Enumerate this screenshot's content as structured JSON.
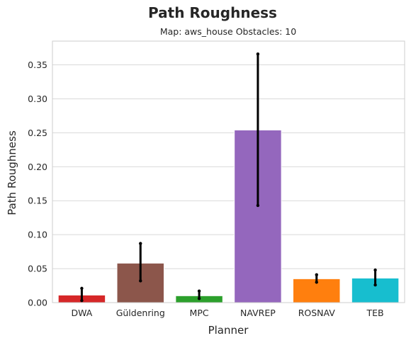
{
  "chart_data": {
    "type": "bar",
    "title": "Path Roughness",
    "subtitle": "Map: aws_house Obstacles: 10",
    "xlabel": "Planner",
    "ylabel": "Path Roughness",
    "categories": [
      "DWA",
      "Güldenring",
      "MPC",
      "NAVREP",
      "ROSNAV",
      "TEB"
    ],
    "values": [
      0.011,
      0.058,
      0.01,
      0.254,
      0.035,
      0.036
    ],
    "error_low": [
      0.003,
      0.032,
      0.006,
      0.143,
      0.03,
      0.026
    ],
    "error_high": [
      0.021,
      0.087,
      0.017,
      0.366,
      0.041,
      0.048
    ],
    "colors": [
      "#d62728",
      "#8c564b",
      "#2ca02c",
      "#9467bd",
      "#ff7f0e",
      "#17becf"
    ],
    "ylim": [
      0,
      0.385
    ],
    "yticks": [
      "0.00",
      "0.05",
      "0.10",
      "0.15",
      "0.20",
      "0.25",
      "0.30",
      "0.35"
    ],
    "grid": true
  }
}
